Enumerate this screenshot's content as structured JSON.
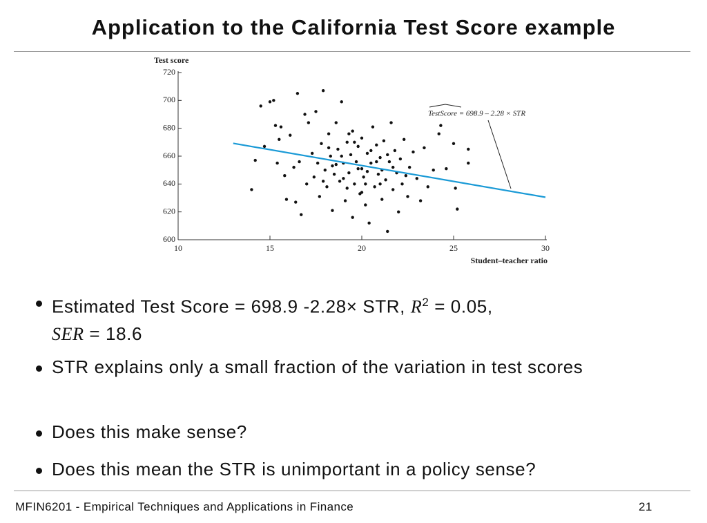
{
  "header": {
    "title": "Application to the California Test Score example"
  },
  "chart_data": {
    "type": "scatter",
    "y_label": "Test score",
    "x_label": "Student–teacher ratio",
    "annotation": "TestScore = 698.9 – 2.28 × STR",
    "xlim": [
      10,
      30
    ],
    "xticks": [
      10,
      15,
      20,
      25,
      30
    ],
    "ylim": [
      600,
      720
    ],
    "yticks": [
      600,
      620,
      640,
      660,
      680,
      700,
      720
    ],
    "color": "#111111",
    "fit_color": "#1a9ad6",
    "fit_line": {
      "x": [
        13,
        30
      ],
      "y": [
        669.2,
        630.5
      ]
    },
    "x": [
      14,
      14.2,
      14.5,
      14.7,
      15,
      15.2,
      15.3,
      15.5,
      15.4,
      15.6,
      15.8,
      15.9,
      16.1,
      16.3,
      16.4,
      16.5,
      16.6,
      16.7,
      16.9,
      17,
      17.1,
      17.3,
      17.4,
      17.5,
      17.6,
      17.7,
      17.8,
      17.9,
      18,
      18.1,
      18.2,
      18.3,
      18.4,
      18.5,
      18.6,
      18.7,
      18.8,
      18.9,
      19,
      19.1,
      19.2,
      19.3,
      19.4,
      19.5,
      19.5,
      19.6,
      19.7,
      19.8,
      19.9,
      20,
      20,
      20.1,
      20.2,
      20.3,
      20.4,
      20.5,
      20.6,
      20.7,
      20.8,
      20.9,
      21,
      21.1,
      21.2,
      21.3,
      21.4,
      21.5,
      21.6,
      21.7,
      21.8,
      21.9,
      22,
      22.1,
      22.2,
      22.3,
      22.5,
      22.6,
      22.8,
      23,
      23.2,
      23.4,
      23.6,
      23.9,
      24.2,
      24.6,
      25,
      25.1,
      25.2,
      25.8,
      25.8,
      24.3,
      18.2,
      18.6,
      19,
      19.3,
      19.8,
      20.2,
      20.5,
      20.8,
      21.1,
      21.4,
      19.6,
      18.9,
      20,
      21,
      18.4,
      17.9,
      20.3,
      19.2,
      21.7,
      22.4
    ],
    "y": [
      636,
      657,
      696,
      667,
      699,
      700,
      682,
      672,
      655,
      681,
      646,
      629,
      675,
      652,
      627,
      705,
      656,
      618,
      690,
      640,
      684,
      662,
      645,
      692,
      655,
      631,
      669,
      707,
      650,
      638,
      676,
      660,
      621,
      647,
      684,
      665,
      642,
      699,
      655,
      628,
      670,
      648,
      661,
      616,
      678,
      640,
      656,
      667,
      633,
      651,
      673,
      645,
      625,
      662,
      612,
      655,
      681,
      638,
      668,
      647,
      659,
      629,
      671,
      643,
      606,
      656,
      684,
      636,
      664,
      648,
      620,
      658,
      640,
      672,
      631,
      652,
      663,
      644,
      628,
      666,
      638,
      650,
      676,
      651,
      669,
      637,
      622,
      665,
      655,
      682,
      666,
      654,
      644,
      676,
      651,
      640,
      664,
      656,
      650,
      661,
      670,
      660,
      634,
      640,
      653,
      642,
      649,
      637,
      652,
      646
    ]
  },
  "bullets": [
    [
      "Estimated Test Score = 698.9 -2.28× STR,",
      "R",
      "2",
      "= 0.05,",
      "SER",
      "= 18.6"
    ],
    "STR explains only a small fraction of the variation in test scores",
    "Does this make sense?",
    "Does this mean the STR is unimportant in a policy sense?"
  ],
  "footer": {
    "text": "MFIN6201 - Empirical Techniques and Applications in Finance",
    "page": "21"
  }
}
